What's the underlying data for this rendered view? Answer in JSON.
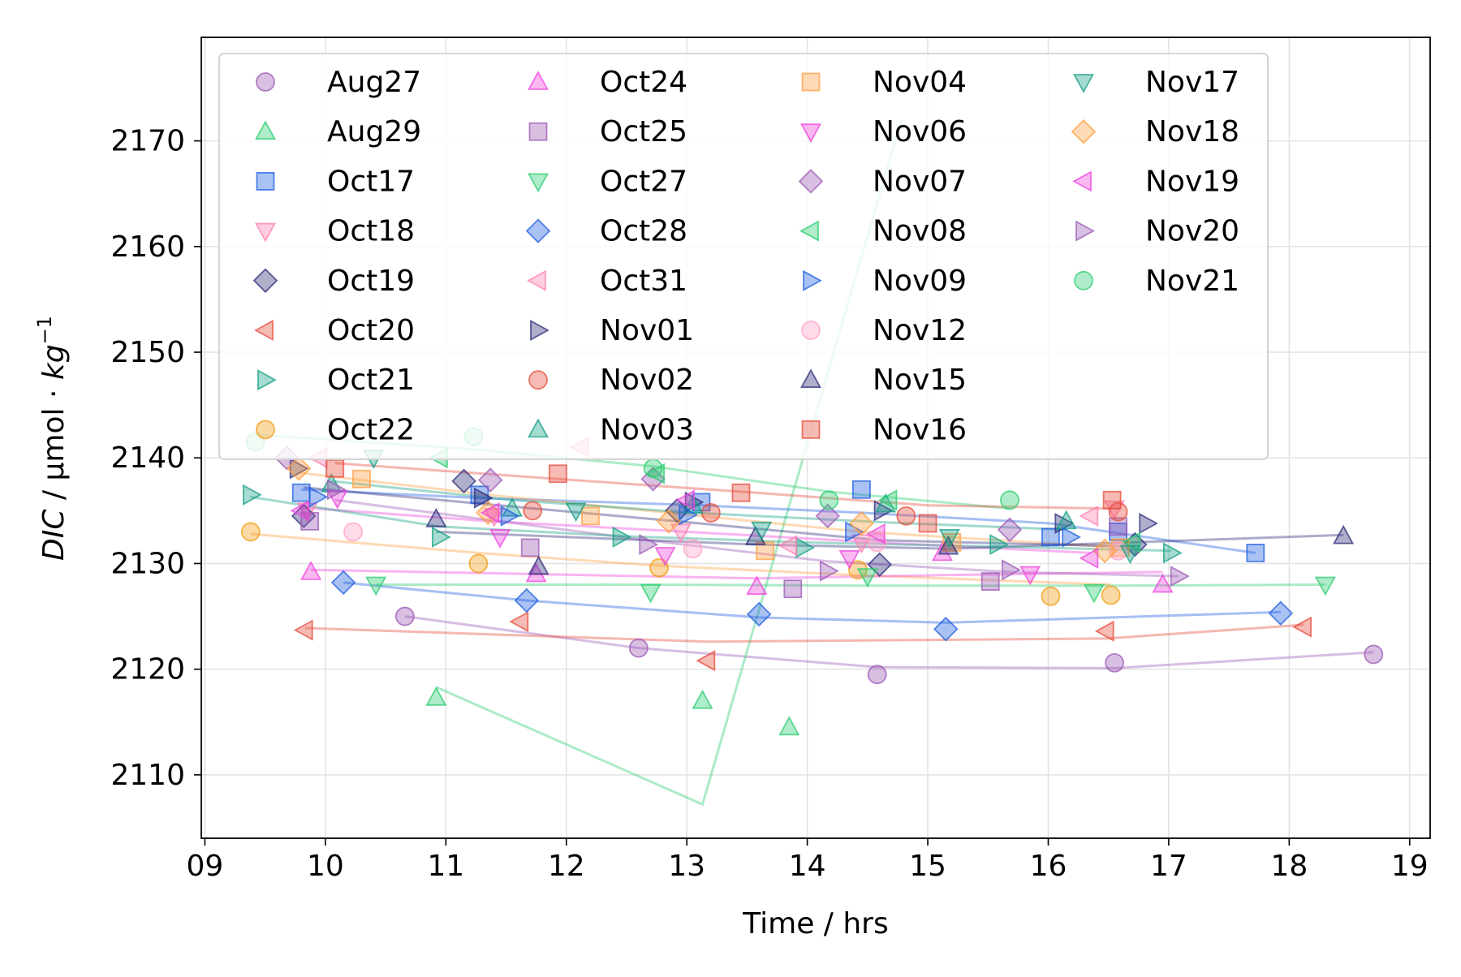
{
  "chart_data": {
    "type": "scatter",
    "xlabel": "Time / hrs",
    "ylabel_main": "DIC",
    "ylabel_unit": " / µmol · ",
    "ylabel_kg": "kg",
    "ylabel_sup": "−1",
    "xlim": [
      8.97,
      19.17
    ],
    "ylim": [
      2104.0,
      2179.8
    ],
    "xticks": [
      9,
      10,
      11,
      12,
      13,
      14,
      15,
      16,
      17,
      18,
      19
    ],
    "xtick_labels": [
      "09",
      "10",
      "11",
      "12",
      "13",
      "14",
      "15",
      "16",
      "17",
      "18",
      "19"
    ],
    "yticks": [
      2110,
      2120,
      2130,
      2140,
      2150,
      2160,
      2170
    ],
    "ytick_labels": [
      "2110",
      "2120",
      "2130",
      "2140",
      "2150",
      "2160",
      "2170"
    ],
    "grid": true,
    "legend_placement": "top-left",
    "series": [
      {
        "name": "Aug27",
        "color": "#9b59b6",
        "marker": "circle",
        "x": [
          10.66,
          12.6,
          14.58,
          16.55,
          18.7
        ],
        "y": [
          2125.0,
          2122.0,
          2119.5,
          2120.6,
          2121.4
        ]
      },
      {
        "name": "Aug29",
        "color": "#2ecc71",
        "marker": "triangle-up",
        "x": [
          10.92,
          13.13,
          13.85
        ],
        "y": [
          2117.3,
          2117.0,
          2114.5
        ]
      },
      {
        "name": "Oct17",
        "color": "#1f5fe0",
        "marker": "square",
        "x": [
          9.8,
          11.28,
          13.12,
          14.45,
          16.02,
          16.58,
          17.72
        ],
        "y": [
          2136.7,
          2136.5,
          2135.8,
          2137.0,
          2132.5,
          2133.0,
          2131.0
        ]
      },
      {
        "name": "Oct18",
        "color": "#ff7fb0",
        "marker": "triangle-down",
        "x": [
          9.85,
          11.4,
          12.95,
          14.45,
          16.55
        ],
        "y": [
          2135.0,
          2134.5,
          2133.0,
          2132.0,
          2135.2
        ]
      },
      {
        "name": "Oct19",
        "color": "#2c2c7a",
        "marker": "diamond",
        "x": [
          9.82,
          11.15,
          12.92,
          14.6,
          16.72
        ],
        "y": [
          2134.5,
          2137.8,
          2135.0,
          2129.9,
          2131.8
        ]
      },
      {
        "name": "Oct20",
        "color": "#e74c3c",
        "marker": "triangle-left",
        "x": [
          9.83,
          11.62,
          13.17,
          16.48,
          18.12
        ],
        "y": [
          2123.7,
          2124.5,
          2120.8,
          2123.6,
          2124.0
        ]
      },
      {
        "name": "Oct21",
        "color": "#16a085",
        "marker": "triangle-right",
        "x": [
          9.38,
          10.95,
          12.45,
          13.97,
          15.58,
          17.02
        ],
        "y": [
          2136.5,
          2132.5,
          2132.5,
          2131.5,
          2131.8,
          2131.0
        ]
      },
      {
        "name": "Oct22",
        "color": "#f39c12",
        "marker": "circle",
        "x": [
          9.38,
          11.27,
          12.77,
          14.42,
          16.02,
          16.52
        ],
        "y": [
          2133.0,
          2130.0,
          2129.6,
          2129.4,
          2126.9,
          2127.0
        ]
      },
      {
        "name": "Oct24",
        "color": "#ee44dd",
        "marker": "triangle-up",
        "x": [
          9.88,
          11.75,
          13.58,
          15.12,
          16.95
        ],
        "y": [
          2129.2,
          2129.0,
          2127.8,
          2131.0,
          2128.0
        ]
      },
      {
        "name": "Oct25",
        "color": "#9b59b6",
        "marker": "square",
        "x": [
          9.87,
          11.7,
          13.88,
          15.52,
          16.58
        ],
        "y": [
          2134.0,
          2131.5,
          2127.6,
          2128.3,
          2133.5
        ]
      },
      {
        "name": "Oct27",
        "color": "#2ecc71",
        "marker": "triangle-down",
        "x": [
          10.42,
          12.7,
          14.5,
          16.38,
          18.3
        ],
        "y": [
          2128.0,
          2127.3,
          2128.8,
          2127.3,
          2128.0
        ]
      },
      {
        "name": "Oct28",
        "color": "#1f5fe0",
        "marker": "diamond",
        "x": [
          10.15,
          11.67,
          13.6,
          15.15,
          17.93
        ],
        "y": [
          2128.2,
          2126.5,
          2125.2,
          2123.8,
          2125.3
        ]
      },
      {
        "name": "Oct31",
        "color": "#ff7fb0",
        "marker": "triangle-left",
        "x": [
          9.95,
          12.12,
          13.85,
          16.35
        ],
        "y": [
          2140.0,
          2141.0,
          2131.7,
          2134.5
        ]
      },
      {
        "name": "Nov01",
        "color": "#2c2c7a",
        "marker": "triangle-right",
        "x": [
          9.77,
          11.3,
          13.05,
          14.62,
          16.12,
          16.82
        ],
        "y": [
          2139.0,
          2136.2,
          2135.8,
          2135.0,
          2133.8,
          2133.8
        ]
      },
      {
        "name": "Nov02",
        "color": "#e74c3c",
        "marker": "circle",
        "x": [
          11.72,
          13.2,
          14.82,
          16.58
        ],
        "y": [
          2135.0,
          2134.8,
          2134.5,
          2134.9
        ]
      },
      {
        "name": "Nov03",
        "color": "#16a085",
        "marker": "triangle-up",
        "x": [
          10.05,
          11.55,
          13.05,
          14.65,
          16.15
        ],
        "y": [
          2137.5,
          2135.2,
          2135.5,
          2135.6,
          2134.0
        ]
      },
      {
        "name": "Nov04",
        "color": "#ff9f40",
        "marker": "square",
        "x": [
          10.3,
          12.2,
          13.65,
          15.2,
          16.6
        ],
        "y": [
          2138.0,
          2134.5,
          2131.2,
          2132.0,
          2131.5
        ]
      },
      {
        "name": "Nov06",
        "color": "#ee44dd",
        "marker": "triangle-down",
        "x": [
          10.1,
          11.45,
          12.82,
          14.35,
          15.85
        ],
        "y": [
          2136.2,
          2132.5,
          2130.8,
          2130.5,
          2129.0
        ]
      },
      {
        "name": "Nov07",
        "color": "#9b59b6",
        "marker": "diamond",
        "x": [
          9.68,
          11.37,
          12.72,
          14.17,
          15.68
        ],
        "y": [
          2140.0,
          2137.9,
          2138.0,
          2134.5,
          2133.2
        ]
      },
      {
        "name": "Nov08",
        "color": "#2ecc71",
        "marker": "triangle-left",
        "x": [
          10.95,
          12.75,
          14.68,
          16.7
        ],
        "y": [
          2140.0,
          2138.5,
          2136.0,
          2132.0
        ]
      },
      {
        "name": "Nov09",
        "color": "#1f5fe0",
        "marker": "triangle-right",
        "x": [
          9.93,
          11.52,
          13.0,
          14.38,
          16.18
        ],
        "y": [
          2136.3,
          2134.5,
          2134.6,
          2133.0,
          2132.5
        ]
      },
      {
        "name": "Nov12",
        "color": "#ffa0c8",
        "marker": "circle",
        "x": [
          10.23,
          13.05,
          14.58,
          16.58
        ],
        "y": [
          2133.0,
          2131.4,
          2132.0,
          2131.2
        ]
      },
      {
        "name": "Nov15",
        "color": "#2c2c7a",
        "marker": "triangle-up",
        "x": [
          10.92,
          11.77,
          13.57,
          15.17,
          18.45
        ],
        "y": [
          2134.2,
          2129.7,
          2132.5,
          2131.6,
          2132.6
        ]
      },
      {
        "name": "Nov16",
        "color": "#e74c3c",
        "marker": "square",
        "x": [
          10.08,
          11.93,
          13.45,
          15.0,
          16.53
        ],
        "y": [
          2139.0,
          2138.5,
          2136.7,
          2133.8,
          2136.0
        ]
      },
      {
        "name": "Nov17",
        "color": "#16a085",
        "marker": "triangle-down",
        "x": [
          10.4,
          12.08,
          13.62,
          15.18,
          16.68
        ],
        "y": [
          2140.0,
          2135.0,
          2133.2,
          2132.5,
          2131.0
        ]
      },
      {
        "name": "Nov18",
        "color": "#ff9f40",
        "marker": "diamond",
        "x": [
          9.78,
          11.35,
          12.85,
          14.45,
          16.47
        ],
        "y": [
          2139.0,
          2134.8,
          2134.0,
          2133.8,
          2131.2
        ]
      },
      {
        "name": "Nov19",
        "color": "#ee44dd",
        "marker": "triangle-left",
        "x": [
          9.8,
          11.38,
          13.0,
          14.58,
          16.35
        ],
        "y": [
          2135.0,
          2134.8,
          2136.0,
          2132.8,
          2130.5
        ]
      },
      {
        "name": "Nov20",
        "color": "#9b59b6",
        "marker": "triangle-right",
        "x": [
          10.08,
          12.67,
          14.17,
          15.68,
          17.08
        ],
        "y": [
          2137.0,
          2131.8,
          2129.3,
          2129.4,
          2128.8
        ]
      },
      {
        "name": "Nov21",
        "color": "#2ecc71",
        "marker": "circle",
        "x": [
          9.42,
          11.23,
          12.72,
          14.18,
          15.68
        ],
        "y": [
          2141.5,
          2142.0,
          2139.0,
          2136.0,
          2136.0
        ]
      }
    ],
    "lines": [
      {
        "color": "#9b59b6",
        "x": [
          10.66,
          12.6,
          14.58,
          16.55,
          18.7
        ],
        "y": [
          2125.0,
          2122.0,
          2120.2,
          2120.1,
          2121.6
        ]
      },
      {
        "color": "#2ecc71",
        "x": [
          10.92,
          13.13,
          14.78
        ],
        "y": [
          2118.3,
          2107.2,
          2172.0
        ]
      },
      {
        "color": "#2ecc71",
        "x": [
          9.42,
          11.23,
          12.72,
          14.18,
          15.68
        ],
        "y": [
          2142.2,
          2140.8,
          2139.2,
          2136.8,
          2135.2
        ]
      },
      {
        "color": "#2ecc71",
        "x": [
          10.42,
          12.7,
          14.5,
          16.38,
          18.3
        ],
        "y": [
          2128.0,
          2128.0,
          2127.9,
          2127.9,
          2128.0
        ]
      },
      {
        "color": "#1f5fe0",
        "x": [
          10.15,
          11.67,
          13.6,
          15.15,
          17.93
        ],
        "y": [
          2128.2,
          2126.5,
          2124.9,
          2124.4,
          2125.4
        ]
      },
      {
        "color": "#1f5fe0",
        "x": [
          9.8,
          11.28,
          13.12,
          14.45,
          16.02,
          17.72
        ],
        "y": [
          2137.0,
          2136.2,
          2135.5,
          2134.8,
          2133.8,
          2131.0
        ]
      },
      {
        "color": "#e74c3c",
        "x": [
          9.83,
          11.62,
          13.17,
          16.48,
          18.12
        ],
        "y": [
          2123.9,
          2123.2,
          2122.6,
          2122.9,
          2124.2
        ]
      },
      {
        "color": "#e74c3c",
        "x": [
          10.08,
          11.93,
          13.45,
          15.0,
          16.53
        ],
        "y": [
          2139.5,
          2138.0,
          2136.8,
          2135.5,
          2135.2
        ]
      },
      {
        "color": "#ff9f40",
        "x": [
          9.38,
          11.27,
          12.77,
          14.42,
          16.52
        ],
        "y": [
          2132.8,
          2131.0,
          2129.8,
          2128.9,
          2128.0
        ]
      },
      {
        "color": "#ff9f40",
        "x": [
          9.78,
          11.35,
          12.85,
          14.45,
          16.47
        ],
        "y": [
          2138.6,
          2136.5,
          2134.8,
          2133.0,
          2131.6
        ]
      },
      {
        "color": "#ee44dd",
        "x": [
          9.88,
          11.75,
          13.58,
          15.12,
          16.95
        ],
        "y": [
          2129.4,
          2129.0,
          2128.6,
          2128.9,
          2129.2
        ]
      },
      {
        "color": "#ee44dd",
        "x": [
          9.8,
          11.38,
          13.0,
          14.58,
          16.35
        ],
        "y": [
          2135.3,
          2134.0,
          2133.0,
          2132.0,
          2131.0
        ]
      },
      {
        "color": "#9b59b6",
        "x": [
          10.08,
          12.67,
          14.17,
          15.68,
          17.08
        ],
        "y": [
          2136.0,
          2132.2,
          2130.2,
          2129.2,
          2128.8
        ]
      },
      {
        "color": "#2c2c7a",
        "x": [
          9.82,
          11.15,
          12.92,
          14.6,
          16.72
        ],
        "y": [
          2137.2,
          2135.8,
          2134.0,
          2132.2,
          2131.6
        ]
      },
      {
        "color": "#2c2c7a",
        "x": [
          10.92,
          13.57,
          15.17,
          18.45
        ],
        "y": [
          2133.0,
          2131.8,
          2131.4,
          2132.7
        ]
      },
      {
        "color": "#16a085",
        "x": [
          9.38,
          10.95,
          12.45,
          13.97,
          15.58,
          17.02
        ],
        "y": [
          2136.3,
          2133.5,
          2132.6,
          2132.0,
          2131.6,
          2131.2
        ]
      },
      {
        "color": "#16a085",
        "x": [
          10.05,
          11.55,
          13.05,
          14.65,
          16.15
        ],
        "y": [
          2137.8,
          2136.0,
          2134.8,
          2133.9,
          2133.2
        ]
      }
    ]
  }
}
